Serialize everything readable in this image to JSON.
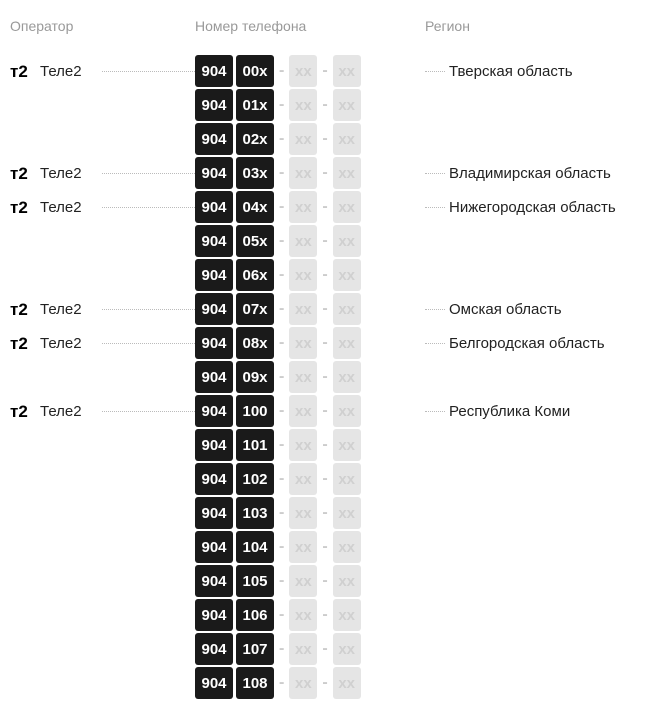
{
  "headers": {
    "operator": "Оператор",
    "phone": "Номер телефона",
    "region": "Регион"
  },
  "colors": {
    "header_text": "#999999",
    "body_text": "#222222",
    "dark_box_bg": "#1a1a1a",
    "dark_box_text": "#ffffff",
    "light_box_bg": "#e5e5e5",
    "light_box_text": "#d0d0d0",
    "line_color": "#bbbbbb",
    "background": "#ffffff"
  },
  "constants": {
    "prefix": "904",
    "xx": "xx",
    "dash": "-"
  },
  "rows": [
    {
      "operator": "Теле2",
      "code": "00x",
      "region": "Тверская область"
    },
    {
      "operator": "",
      "code": "01x",
      "region": ""
    },
    {
      "operator": "",
      "code": "02x",
      "region": ""
    },
    {
      "operator": "Теле2",
      "code": "03x",
      "region": "Владимирская область"
    },
    {
      "operator": "Теле2",
      "code": "04x",
      "region": "Нижегородская область"
    },
    {
      "operator": "",
      "code": "05x",
      "region": ""
    },
    {
      "operator": "",
      "code": "06x",
      "region": ""
    },
    {
      "operator": "Теле2",
      "code": "07x",
      "region": "Омская область"
    },
    {
      "operator": "Теле2",
      "code": "08x",
      "region": "Белгородская область"
    },
    {
      "operator": "",
      "code": "09x",
      "region": ""
    },
    {
      "operator": "Теле2",
      "code": "100",
      "region": "Республика Коми"
    },
    {
      "operator": "",
      "code": "101",
      "region": ""
    },
    {
      "operator": "",
      "code": "102",
      "region": ""
    },
    {
      "operator": "",
      "code": "103",
      "region": ""
    },
    {
      "operator": "",
      "code": "104",
      "region": ""
    },
    {
      "operator": "",
      "code": "105",
      "region": ""
    },
    {
      "operator": "",
      "code": "106",
      "region": ""
    },
    {
      "operator": "",
      "code": "107",
      "region": ""
    },
    {
      "operator": "",
      "code": "108",
      "region": ""
    }
  ]
}
